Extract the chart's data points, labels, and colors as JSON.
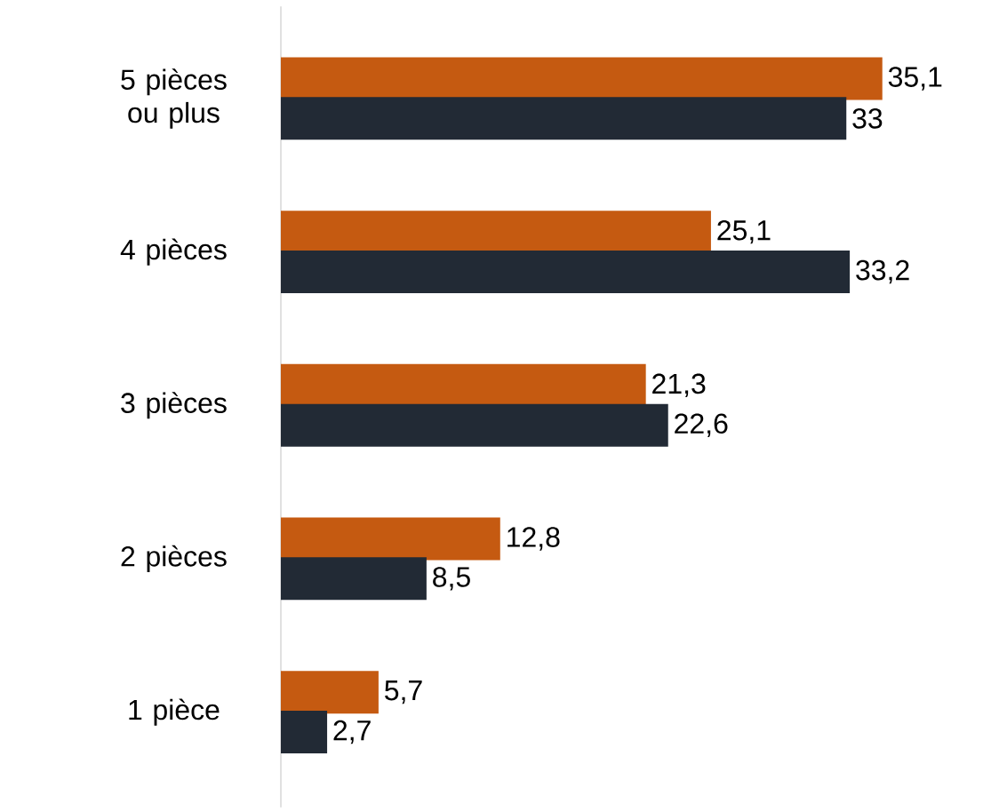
{
  "chart_data": {
    "type": "bar",
    "orientation": "horizontal",
    "categories": [
      "5 pièces ou plus",
      "4 pièces",
      "3 pièces",
      "2 pièces",
      "1 pièce"
    ],
    "series": [
      {
        "color": "#c55a11",
        "values": [
          35.1,
          25.1,
          21.3,
          12.8,
          5.7
        ],
        "value_labels": [
          "35,1",
          "25,1",
          "21,3",
          "12,8",
          "5,7"
        ]
      },
      {
        "color": "#222a35",
        "values": [
          33,
          33.2,
          22.6,
          8.5,
          2.7
        ],
        "value_labels": [
          "33",
          "33,2",
          "22,6",
          "8,5",
          "2,7"
        ]
      }
    ]
  }
}
